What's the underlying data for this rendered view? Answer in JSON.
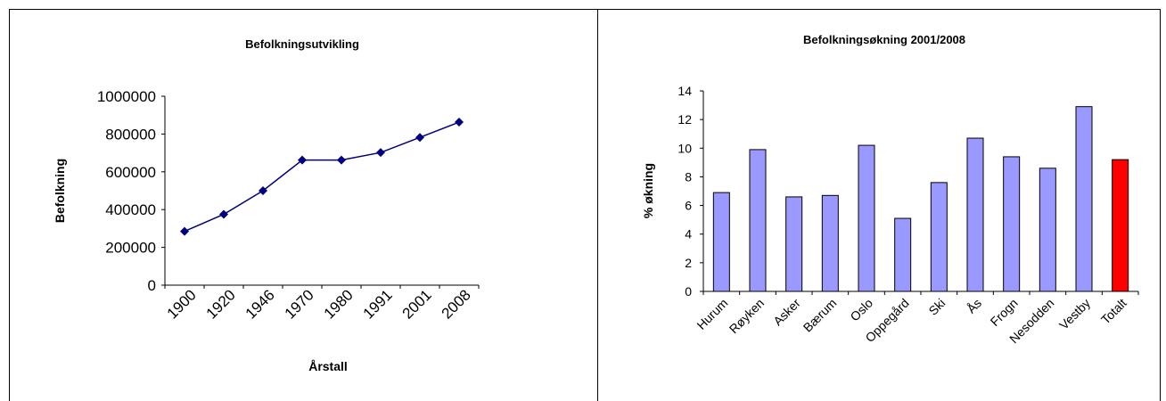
{
  "chart_data": [
    {
      "type": "line",
      "title": "Befolkningsutvikling",
      "xlabel": "Årstall",
      "ylabel": "Befolkning",
      "categories": [
        "1900",
        "1920",
        "1946",
        "1970",
        "1980",
        "1991",
        "2001",
        "2008"
      ],
      "values": [
        285000,
        375000,
        500000,
        662000,
        662000,
        702000,
        782000,
        863000
      ],
      "ylim": [
        0,
        1000000
      ],
      "yticks": [
        "0",
        "200000",
        "400000",
        "600000",
        "800000",
        "1000000"
      ],
      "line_color": "#000080",
      "marker": "diamond",
      "grid": false,
      "legend": "none"
    },
    {
      "type": "bar",
      "title": "Befolkningsøkning 2001/2008",
      "xlabel": "",
      "ylabel": "% økning",
      "categories": [
        "Hurum",
        "Røyken",
        "Asker",
        "Bærum",
        "Oslo",
        "Oppegård",
        "Ski",
        "Ås",
        "Frogn",
        "Nesodden",
        "Vestby",
        "Totalt"
      ],
      "values": [
        6.9,
        9.9,
        6.6,
        6.7,
        10.2,
        5.1,
        7.6,
        10.7,
        9.4,
        8.6,
        12.9,
        9.2
      ],
      "ylim": [
        0,
        14
      ],
      "yticks": [
        "0",
        "2",
        "4",
        "6",
        "8",
        "10",
        "12",
        "14"
      ],
      "bar_color": "#9999ff",
      "highlight_color": "#ff0000",
      "highlight_category": "Totalt",
      "grid": false,
      "legend": "none"
    }
  ]
}
